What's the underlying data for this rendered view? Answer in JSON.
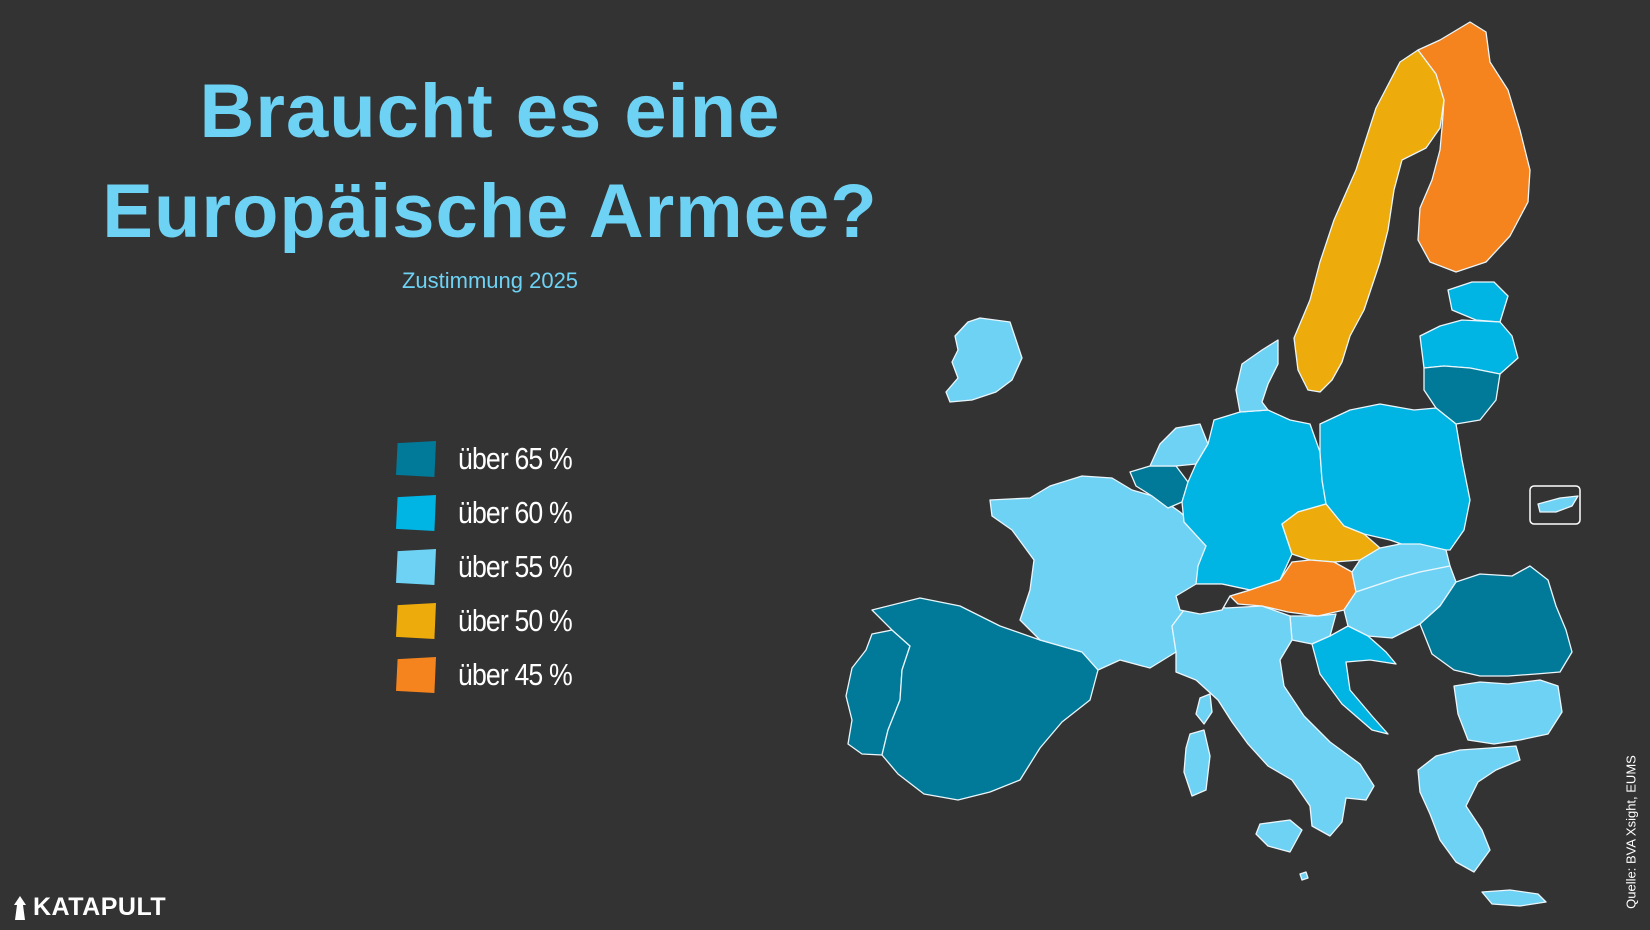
{
  "title_line1": "Braucht es eine",
  "title_line2": "Europäische Armee?",
  "subtitle": "Zustimmung 2025",
  "legend": [
    {
      "label": "über 65 %",
      "color": "#007a98"
    },
    {
      "label": "über 60 %",
      "color": "#00b4e4"
    },
    {
      "label": "über 55 %",
      "color": "#6dd2f4"
    },
    {
      "label": "über 50 %",
      "color": "#eeab0c"
    },
    {
      "label": "über 45 %",
      "color": "#f5841f"
    }
  ],
  "logo_text": "KATAPULT",
  "source": "Quelle: BVA Xsight, EUMS",
  "icons": {
    "logo": "katapult-logo-icon"
  },
  "countries": [
    {
      "name": "Ireland",
      "category": 2
    },
    {
      "name": "Portugal",
      "category": 0
    },
    {
      "name": "Spain",
      "category": 0
    },
    {
      "name": "France",
      "category": 2
    },
    {
      "name": "Belgium",
      "category": 0
    },
    {
      "name": "Netherlands",
      "category": 2
    },
    {
      "name": "Luxembourg",
      "category": 2
    },
    {
      "name": "Germany",
      "category": 1
    },
    {
      "name": "Denmark",
      "category": 2
    },
    {
      "name": "Sweden",
      "category": 3
    },
    {
      "name": "Finland",
      "category": 4
    },
    {
      "name": "Estonia",
      "category": 1
    },
    {
      "name": "Latvia",
      "category": 1
    },
    {
      "name": "Lithuania",
      "category": 0
    },
    {
      "name": "Poland",
      "category": 1
    },
    {
      "name": "Czechia",
      "category": 3
    },
    {
      "name": "Austria",
      "category": 4
    },
    {
      "name": "Slovakia",
      "category": 2
    },
    {
      "name": "Hungary",
      "category": 2
    },
    {
      "name": "Slovenia",
      "category": 2
    },
    {
      "name": "Croatia",
      "category": 1
    },
    {
      "name": "Italy",
      "category": 2
    },
    {
      "name": "Romania",
      "category": 0
    },
    {
      "name": "Bulgaria",
      "category": 2
    },
    {
      "name": "Greece",
      "category": 2
    },
    {
      "name": "Cyprus",
      "category": 2
    },
    {
      "name": "Malta",
      "category": 2
    },
    {
      "name": "Switzerland",
      "category": -1
    }
  ]
}
